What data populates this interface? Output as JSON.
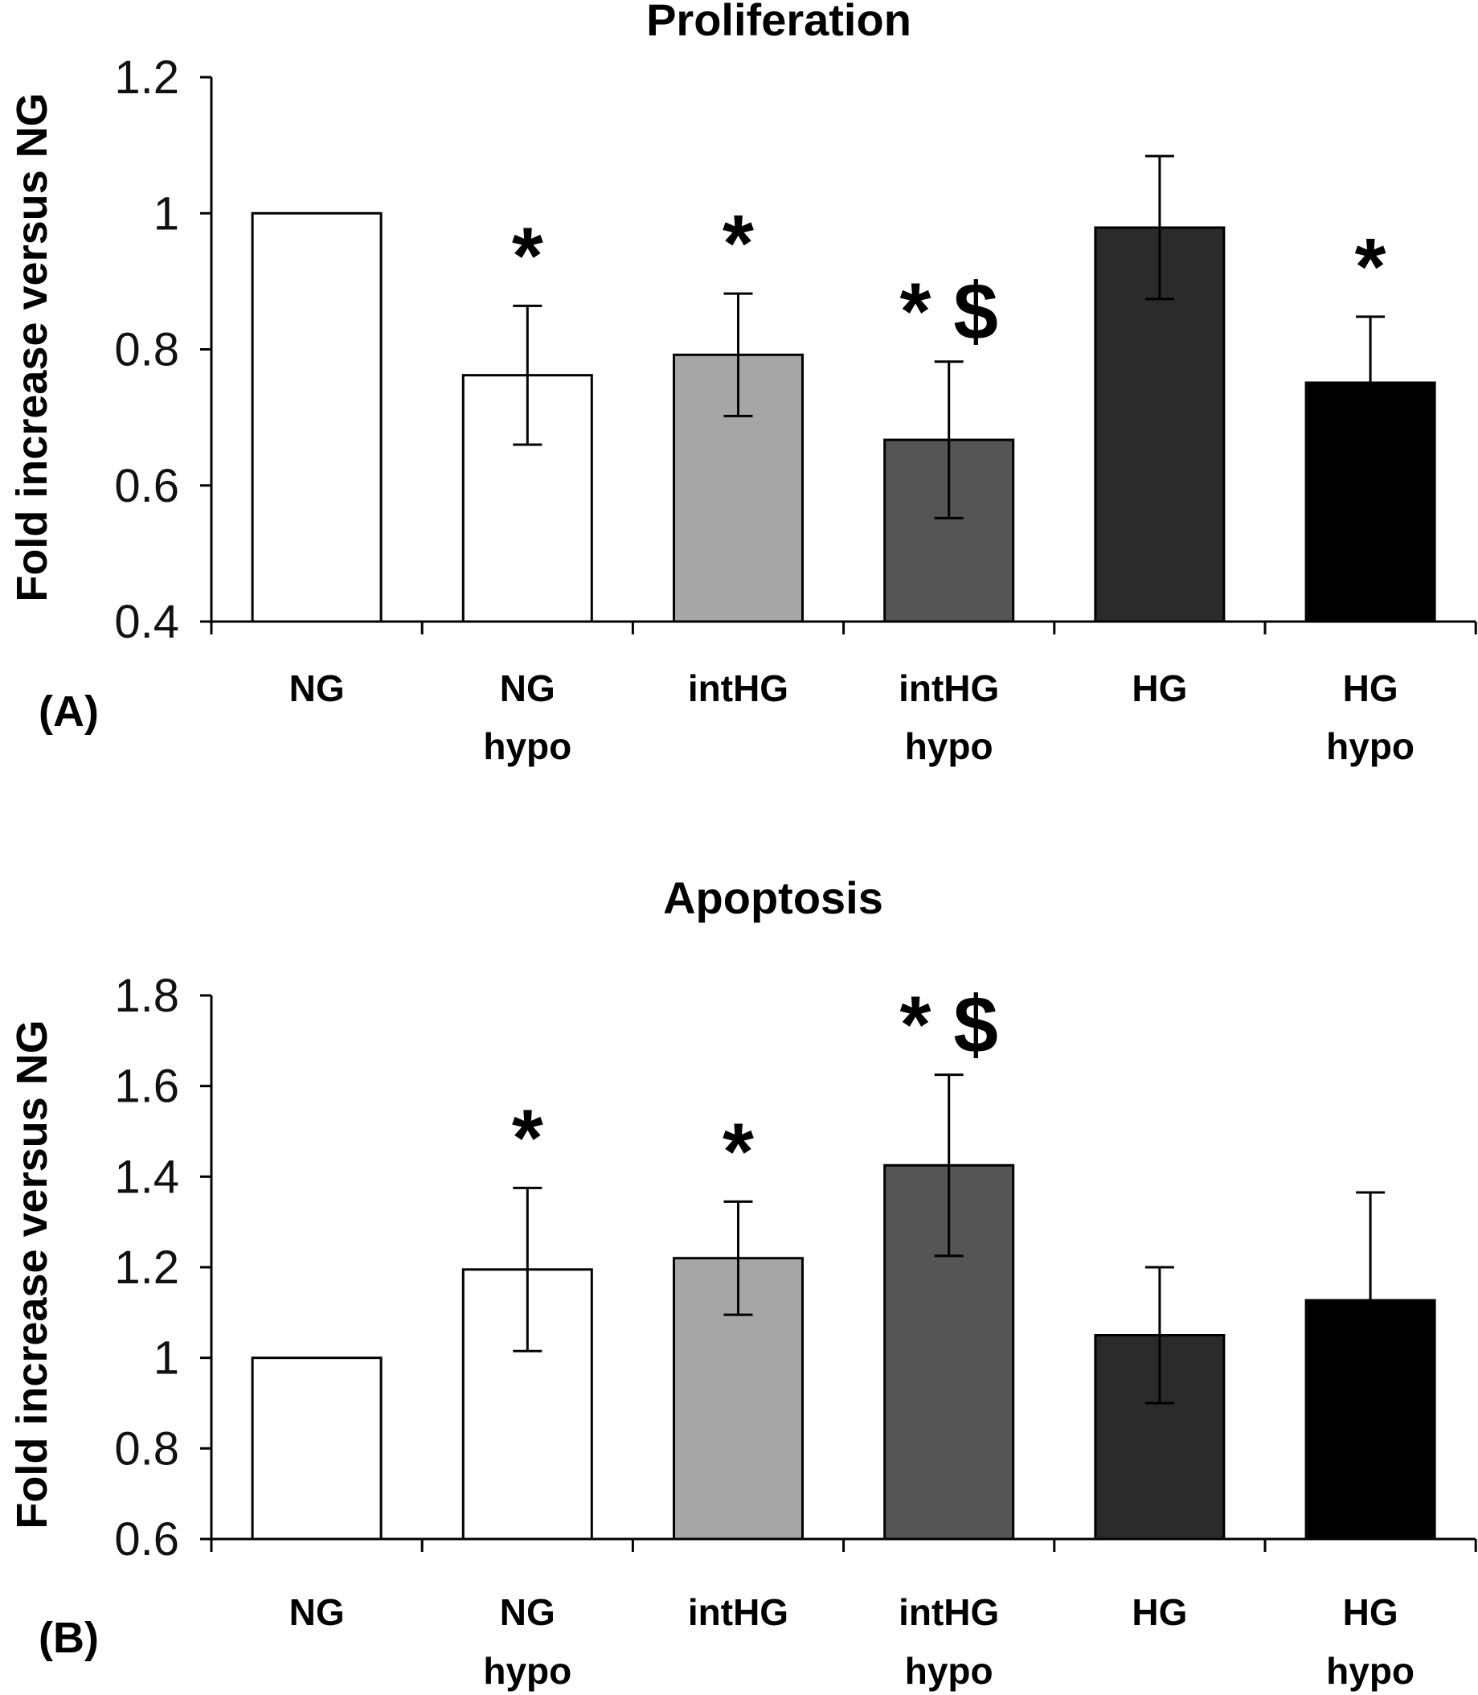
{
  "chart_data": [
    {
      "type": "bar",
      "panel_label": "(A)",
      "title": "Proliferation",
      "xlabel": "",
      "ylabel": "Fold increase versus NG",
      "ylim": [
        0.4,
        1.2
      ],
      "yticks": [
        "0.4",
        "0.6",
        "0.8",
        "1",
        "1.2"
      ],
      "categories": [
        [
          "NG"
        ],
        [
          "NG",
          "hypo"
        ],
        [
          "intHG"
        ],
        [
          "intHG",
          "hypo"
        ],
        [
          "HG"
        ],
        [
          "HG",
          "hypo"
        ]
      ],
      "values": [
        1.0,
        0.762,
        0.792,
        0.667,
        0.979,
        0.751
      ],
      "errors": [
        0,
        0.102,
        0.09,
        0.115,
        0.105,
        0.097
      ],
      "colors": [
        "#ffffff",
        "#ffffff",
        "#a6a6a6",
        "#555555",
        "#2b2b2b",
        "#000000"
      ],
      "significance": [
        "",
        "*",
        "*",
        "* $",
        "",
        "*"
      ],
      "grid": false
    },
    {
      "type": "bar",
      "panel_label": "(B)",
      "title": "Apoptosis",
      "xlabel": "",
      "ylabel": "Fold increase versus NG",
      "ylim": [
        0.6,
        1.8
      ],
      "yticks": [
        "0.6",
        "0.8",
        "1",
        "1.2",
        "1.4",
        "1.6",
        "1.8"
      ],
      "categories": [
        [
          "NG"
        ],
        [
          "NG",
          "hypo"
        ],
        [
          "intHG"
        ],
        [
          "intHG",
          "hypo"
        ],
        [
          "HG"
        ],
        [
          "HG",
          "hypo"
        ]
      ],
      "values": [
        1.0,
        1.195,
        1.22,
        1.425,
        1.05,
        1.127
      ],
      "errors": [
        0,
        0.18,
        0.125,
        0.2,
        0.15,
        0.238
      ],
      "colors": [
        "#ffffff",
        "#ffffff",
        "#a6a6a6",
        "#555555",
        "#2b2b2b",
        "#000000"
      ],
      "significance": [
        "",
        "*",
        "*",
        "* $",
        "",
        ""
      ],
      "grid": false
    }
  ]
}
